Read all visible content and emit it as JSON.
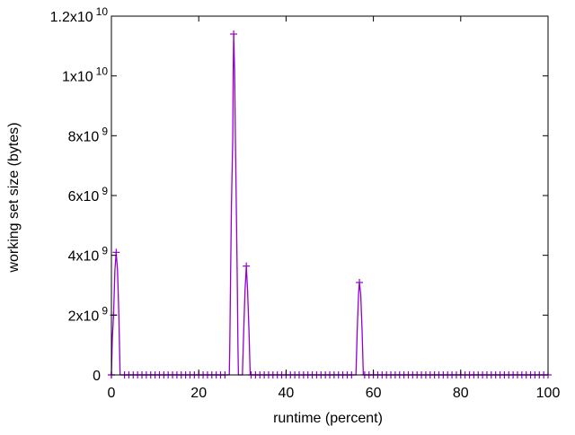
{
  "chart_data": {
    "type": "line",
    "title": "",
    "xlabel": "runtime (percent)",
    "ylabel": "working set size (bytes)",
    "xlim": [
      0,
      100
    ],
    "ylim": [
      0,
      12000000000
    ],
    "x_ticks": [
      {
        "value": 0,
        "label": "0"
      },
      {
        "value": 20,
        "label": "20"
      },
      {
        "value": 40,
        "label": "40"
      },
      {
        "value": 60,
        "label": "60"
      },
      {
        "value": 80,
        "label": "80"
      },
      {
        "value": 100,
        "label": "100"
      }
    ],
    "y_ticks": [
      {
        "value": 0,
        "mantissa": "0",
        "exponent": ""
      },
      {
        "value": 2000000000,
        "mantissa": "2x10",
        "exponent": "9"
      },
      {
        "value": 4000000000,
        "mantissa": "4x10",
        "exponent": "9"
      },
      {
        "value": 6000000000,
        "mantissa": "6x10",
        "exponent": "9"
      },
      {
        "value": 8000000000,
        "mantissa": "8x10",
        "exponent": "9"
      },
      {
        "value": 10000000000,
        "mantissa": "1x10",
        "exponent": "10"
      },
      {
        "value": 12000000000,
        "mantissa": "1.2x10",
        "exponent": "10"
      }
    ],
    "grid": false,
    "legend": "none",
    "color": "#9400d3",
    "series": [
      {
        "marker": "plus",
        "line_points": [
          [
            0,
            0
          ],
          [
            0.2,
            1200000000
          ],
          [
            0.5,
            2000000000
          ],
          [
            0.8,
            3500000000
          ],
          [
            1.1,
            4100000000
          ],
          [
            1.4,
            3500000000
          ],
          [
            1.7,
            2000000000
          ],
          [
            2,
            0
          ],
          [
            27,
            0
          ],
          [
            27.1,
            840000000
          ],
          [
            27.3,
            3400000000
          ],
          [
            27.5,
            5700000000
          ],
          [
            27.8,
            7950000000
          ],
          [
            27.9,
            10200000000
          ],
          [
            28,
            11400000000
          ],
          [
            28.2,
            10200000000
          ],
          [
            28.4,
            7950000000
          ],
          [
            28.6,
            5700000000
          ],
          [
            28.8,
            3400000000
          ],
          [
            29,
            840000000
          ],
          [
            29.1,
            0
          ],
          [
            30,
            0
          ],
          [
            30.3,
            1500000000
          ],
          [
            30.6,
            2800000000
          ],
          [
            30.9,
            3640000000
          ],
          [
            31.2,
            2800000000
          ],
          [
            31.5,
            1500000000
          ],
          [
            31.8,
            0
          ],
          [
            56,
            0
          ],
          [
            56.3,
            1500000000
          ],
          [
            56.6,
            2700000000
          ],
          [
            56.8,
            3090000000
          ],
          [
            57.1,
            2700000000
          ],
          [
            57.4,
            1500000000
          ],
          [
            57.7,
            0
          ],
          [
            100,
            0
          ]
        ],
        "markers": [
          [
            0,
            0
          ],
          [
            0.5,
            2000000000
          ],
          [
            1.1,
            4100000000
          ],
          [
            28,
            11400000000
          ],
          [
            30.9,
            3640000000
          ],
          [
            56.8,
            3090000000
          ]
        ],
        "zero_marker_range": [
          0,
          100
        ]
      }
    ]
  }
}
